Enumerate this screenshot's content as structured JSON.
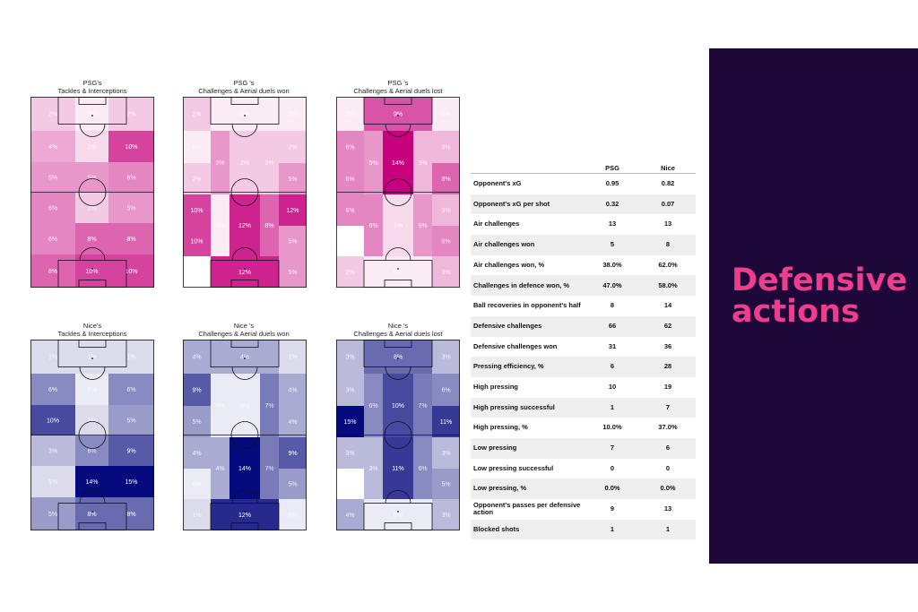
{
  "panel": {
    "title": "Defensive\nactions"
  },
  "chart_data": [
    {
      "type": "heatmap",
      "title": "PSG's\nTackles & Interceptions",
      "team": "psg",
      "cells": [
        {
          "zone": "r0c0",
          "value": "2%"
        },
        {
          "zone": "r0c1",
          "value": "0%"
        },
        {
          "zone": "r0c2",
          "value": "2%"
        },
        {
          "zone": "r1c0",
          "value": "4%"
        },
        {
          "zone": "r1c1",
          "value": "1%"
        },
        {
          "zone": "r1c2",
          "value": "10%"
        },
        {
          "zone": "r2c0",
          "value": "5%"
        },
        {
          "zone": "r2c1",
          "value": "5%"
        },
        {
          "zone": "r2c2",
          "value": "6%"
        },
        {
          "zone": "r3c0",
          "value": "6%"
        },
        {
          "zone": "r3c1",
          "value": "2%"
        },
        {
          "zone": "r3c2",
          "value": "5%"
        },
        {
          "zone": "r4c0",
          "value": "6%"
        },
        {
          "zone": "r4c1",
          "value": "8%"
        },
        {
          "zone": "r4c2",
          "value": "8%"
        },
        {
          "zone": "r5c0",
          "value": "8%"
        },
        {
          "zone": "r5c1",
          "value": "10%"
        },
        {
          "zone": "r5c2",
          "value": "10%"
        }
      ]
    },
    {
      "type": "heatmap",
      "title": "PSG 's\nChallenges & Aerial duels won",
      "team": "psg",
      "cells": [
        {
          "zone": "g0",
          "value": "2%"
        },
        {
          "zone": "g1",
          "value": "0%"
        },
        {
          "zone": "g2",
          "value": "0%"
        },
        {
          "zone": "g3",
          "value": "0%"
        },
        {
          "zone": "g4",
          "value": "5%"
        },
        {
          "zone": "g5",
          "value": "2%"
        },
        {
          "zone": "g6",
          "value": "2%"
        },
        {
          "zone": "g7",
          "value": "2%"
        },
        {
          "zone": "g8",
          "value": "5%"
        },
        {
          "zone": "g9",
          "value": "10%"
        },
        {
          "zone": "g10",
          "value": "0%"
        },
        {
          "zone": "g11",
          "value": "12%"
        },
        {
          "zone": "g12",
          "value": "8%"
        },
        {
          "zone": "g13",
          "value": "12%"
        },
        {
          "zone": "g14",
          "value": "10%"
        },
        {
          "zone": "g15",
          "value": "5%"
        },
        {
          "zone": "g16",
          "value": "2%"
        },
        {
          "zone": "g17",
          "value": "12%"
        },
        {
          "zone": "g18",
          "value": "5%"
        }
      ]
    },
    {
      "type": "heatmap",
      "title": "PSG 's\nChallenges & Aerial duels lost",
      "team": "psg",
      "cells": [
        {
          "zone": "g0",
          "value": "0%"
        },
        {
          "zone": "g1",
          "value": "9%"
        },
        {
          "zone": "g2",
          "value": "0%"
        },
        {
          "zone": "g3",
          "value": "6%"
        },
        {
          "zone": "g4",
          "value": "5%"
        },
        {
          "zone": "g5",
          "value": "14%"
        },
        {
          "zone": "g6",
          "value": "3%"
        },
        {
          "zone": "g7",
          "value": "3%"
        },
        {
          "zone": "g8",
          "value": "6%"
        },
        {
          "zone": "g9",
          "value": "8%"
        },
        {
          "zone": "g10",
          "value": "6%"
        },
        {
          "zone": "g11",
          "value": "6%"
        },
        {
          "zone": "g12",
          "value": "1%"
        },
        {
          "zone": "g13",
          "value": "5%"
        },
        {
          "zone": "g14",
          "value": "3%"
        },
        {
          "zone": "g15",
          "value": "6%"
        },
        {
          "zone": "g16",
          "value": "2%"
        },
        {
          "zone": "g17",
          "value": "0%"
        },
        {
          "zone": "g18",
          "value": "3%"
        }
      ]
    },
    {
      "type": "heatmap",
      "title": "Nice's\nTackles & Interceptions",
      "team": "nice",
      "cells": [
        {
          "zone": "r0c0",
          "value": "1%"
        },
        {
          "zone": "r0c1",
          "value": "1%"
        },
        {
          "zone": "r0c2",
          "value": "1%"
        },
        {
          "zone": "r1c0",
          "value": "6%"
        },
        {
          "zone": "r1c1",
          "value": "0%"
        },
        {
          "zone": "r1c2",
          "value": "6%"
        },
        {
          "zone": "r2c0",
          "value": "10%"
        },
        {
          "zone": "r2c1",
          "value": "1%"
        },
        {
          "zone": "r2c2",
          "value": "5%"
        },
        {
          "zone": "r3c0",
          "value": "3%"
        },
        {
          "zone": "r3c1",
          "value": "6%"
        },
        {
          "zone": "r3c2",
          "value": "9%"
        },
        {
          "zone": "r4c0",
          "value": "1%"
        },
        {
          "zone": "r4c1",
          "value": "14%"
        },
        {
          "zone": "r4c2",
          "value": "15%"
        },
        {
          "zone": "r5c0",
          "value": "5%"
        },
        {
          "zone": "r5c1",
          "value": "8%"
        },
        {
          "zone": "r5c2",
          "value": "8%"
        }
      ]
    },
    {
      "type": "heatmap",
      "title": "Nice 's\nChallenges & Aerial duels won",
      "team": "nice",
      "cells": [
        {
          "zone": "g0",
          "value": "4%"
        },
        {
          "zone": "g1",
          "value": "4%"
        },
        {
          "zone": "g2",
          "value": "1%"
        },
        {
          "zone": "g3",
          "value": "9%"
        },
        {
          "zone": "g4",
          "value": "0%"
        },
        {
          "zone": "g5",
          "value": "0%"
        },
        {
          "zone": "g6",
          "value": "7%"
        },
        {
          "zone": "g7",
          "value": "4%"
        },
        {
          "zone": "g8",
          "value": "5%"
        },
        {
          "zone": "g9",
          "value": "4%"
        },
        {
          "zone": "g10",
          "value": "4%"
        },
        {
          "zone": "g11",
          "value": "4%"
        },
        {
          "zone": "g12",
          "value": "14%"
        },
        {
          "zone": "g13",
          "value": "7%"
        },
        {
          "zone": "g14",
          "value": "9%"
        },
        {
          "zone": "g15",
          "value": "0%"
        },
        {
          "zone": "g16",
          "value": "5%"
        },
        {
          "zone": "g17",
          "value": "1%"
        },
        {
          "zone": "g18",
          "value": "12%"
        },
        {
          "zone": "g19",
          "value": "0%"
        }
      ]
    },
    {
      "type": "heatmap",
      "title": "Nice 's\nChallenges & Aerial duels lost",
      "team": "nice",
      "cells": [
        {
          "zone": "g0",
          "value": "3%"
        },
        {
          "zone": "g1",
          "value": "8%"
        },
        {
          "zone": "g2",
          "value": "3%"
        },
        {
          "zone": "g3",
          "value": "3%"
        },
        {
          "zone": "g4",
          "value": "6%"
        },
        {
          "zone": "g5",
          "value": "10%"
        },
        {
          "zone": "g6",
          "value": "7%"
        },
        {
          "zone": "g7",
          "value": "6%"
        },
        {
          "zone": "g8",
          "value": "15%"
        },
        {
          "zone": "g9",
          "value": "11%"
        },
        {
          "zone": "g10",
          "value": "3%"
        },
        {
          "zone": "g11",
          "value": "3%"
        },
        {
          "zone": "g12",
          "value": "11%"
        },
        {
          "zone": "g13",
          "value": "6%"
        },
        {
          "zone": "g14",
          "value": "3%"
        },
        {
          "zone": "g15",
          "value": "5%"
        },
        {
          "zone": "g16",
          "value": "4%"
        },
        {
          "zone": "g17",
          "value": "0%"
        },
        {
          "zone": "g18",
          "value": "3%"
        }
      ]
    },
    {
      "type": "table",
      "columns": [
        "",
        "PSG",
        "Nice"
      ],
      "rows": [
        [
          "Opponent's xG",
          "0.95",
          "0.82"
        ],
        [
          "Opponent's xG per shot",
          "0.32",
          "0.07"
        ],
        [
          "Air challenges",
          "13",
          "13"
        ],
        [
          "Air challenges won",
          "5",
          "8"
        ],
        [
          "Air challenges won, %",
          "38.0%",
          "62.0%"
        ],
        [
          "Challenges in defence won, %",
          "47.0%",
          "58.0%"
        ],
        [
          "Ball recoveries in opponent's half",
          "8",
          "14"
        ],
        [
          "Defensive challenges",
          "66",
          "62"
        ],
        [
          "Defensive challenges won",
          "31",
          "36"
        ],
        [
          "Pressing efficiency, %",
          "6",
          "28"
        ],
        [
          "High pressing",
          "10",
          "19"
        ],
        [
          "High pressing successful",
          "1",
          "7"
        ],
        [
          "High pressing, %",
          "10.0%",
          "37.0%"
        ],
        [
          "Low pressing",
          "7",
          "6"
        ],
        [
          "Low pressing successful",
          "0",
          "0"
        ],
        [
          "Low pressing, %",
          "0.0%",
          "0.0%"
        ],
        [
          "Opponent's passes per defensive action",
          "9",
          "13"
        ],
        [
          "Blocked shots",
          "1",
          "1"
        ]
      ]
    }
  ],
  "colors": {
    "psg": "#c7007d",
    "nice": "#050a7c",
    "panel": "#1d0839",
    "accent": "#ef3d8e"
  }
}
